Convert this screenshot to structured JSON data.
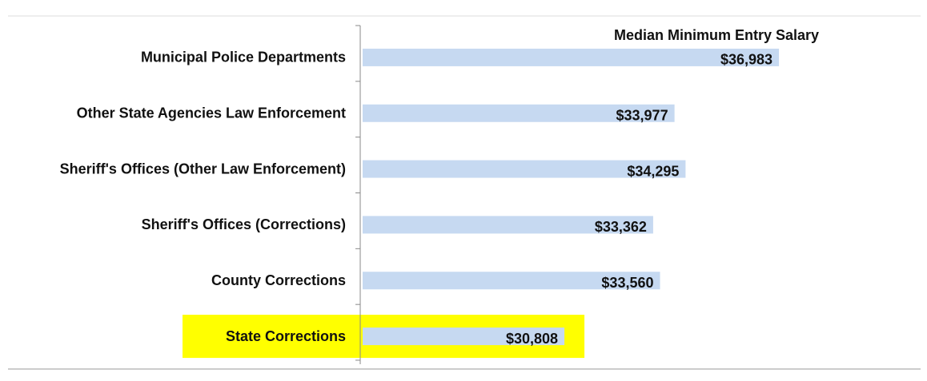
{
  "chart_data": {
    "type": "barh",
    "title": "Median Minimum Entry Salary",
    "categories": [
      "Municipal Police Departments",
      "Other State Agencies Law Enforcement",
      "Sheriff's Offices (Other Law Enforcement)",
      "Sheriff's Offices (Corrections)",
      "County Corrections",
      "State Corrections"
    ],
    "values": [
      36983,
      33977,
      34295,
      33362,
      33560,
      30808
    ],
    "value_labels": [
      "$36,983",
      "$33,977",
      "$34,295",
      "$33,362",
      "$33,560",
      "$30,808"
    ],
    "color": "#c6d9f1",
    "xlim": [
      25000,
      40000
    ],
    "highlight": "State Corrections",
    "highlight_color": "#ffff00"
  }
}
